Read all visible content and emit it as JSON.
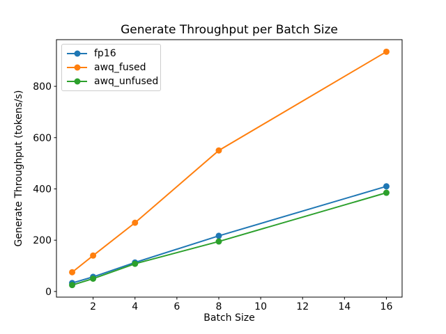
{
  "chart_data": {
    "type": "line",
    "title": "Generate Throughput per Batch Size",
    "xlabel": "Batch Size",
    "ylabel": "Generate Throughput (tokens/s)",
    "x": [
      1,
      2,
      4,
      8,
      16
    ],
    "series": [
      {
        "name": "fp16",
        "color": "#1f77b4",
        "values": [
          33,
          57,
          113,
          217,
          410
        ]
      },
      {
        "name": "awq_fused",
        "color": "#ff7f0e",
        "values": [
          75,
          140,
          268,
          550,
          935
        ]
      },
      {
        "name": "awq_unfused",
        "color": "#2ca02c",
        "values": [
          25,
          50,
          108,
          195,
          385
        ]
      }
    ],
    "xticks": [
      2,
      4,
      6,
      8,
      10,
      12,
      14,
      16
    ],
    "yticks": [
      0,
      200,
      400,
      600,
      800
    ],
    "xlim": [
      0.25,
      16.75
    ],
    "ylim": [
      -22,
      982
    ],
    "legend_position": "upper-left",
    "grid": false,
    "marker": "o",
    "axis_color": "#000000",
    "background_color": "#ffffff",
    "tick_label_color": "#000000"
  }
}
